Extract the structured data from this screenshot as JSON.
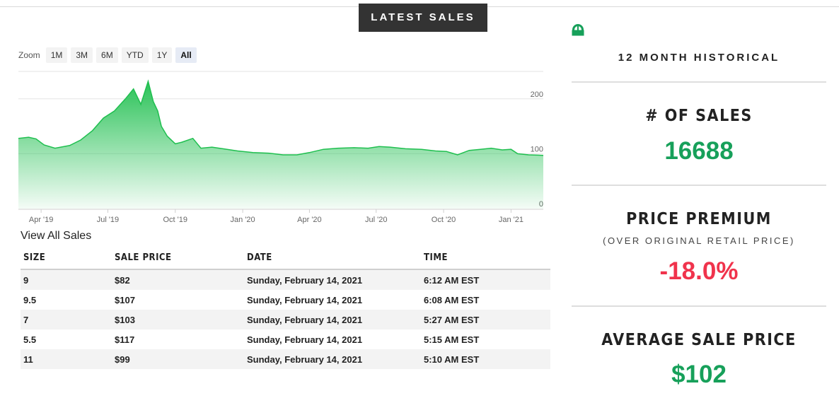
{
  "header": {
    "latest_sales_label": "LATEST SALES"
  },
  "zoom": {
    "label": "Zoom",
    "options": [
      "1M",
      "3M",
      "6M",
      "YTD",
      "1Y",
      "All"
    ],
    "selected": "All"
  },
  "chart_data": {
    "type": "area",
    "title": "",
    "xlabel": "",
    "ylabel": "",
    "ylim": [
      0,
      250
    ],
    "xlim": [
      "2019-03-01",
      "2021-02-14"
    ],
    "grid": true,
    "x_ticks": [
      {
        "label": "Apr '19",
        "date": "2019-04-01"
      },
      {
        "label": "Jul '19",
        "date": "2019-07-01"
      },
      {
        "label": "Oct '19",
        "date": "2019-10-01"
      },
      {
        "label": "Jan '20",
        "date": "2020-01-01"
      },
      {
        "label": "Apr '20",
        "date": "2020-04-01"
      },
      {
        "label": "Jul '20",
        "date": "2020-07-01"
      },
      {
        "label": "Oct '20",
        "date": "2020-10-01"
      },
      {
        "label": "Jan '21",
        "date": "2021-01-01"
      }
    ],
    "y_ticks": [
      0,
      100,
      200
    ],
    "color": "#1fbf4f",
    "series": [
      {
        "x": [
          "2019-03-01",
          "2019-03-15",
          "2019-03-25",
          "2019-04-05",
          "2019-04-20",
          "2019-05-10",
          "2019-05-25",
          "2019-06-10",
          "2019-06-25",
          "2019-07-10",
          "2019-07-25",
          "2019-08-05",
          "2019-08-15",
          "2019-08-25",
          "2019-09-01",
          "2019-09-07",
          "2019-09-12",
          "2019-09-20",
          "2019-10-01",
          "2019-10-10",
          "2019-10-25",
          "2019-11-05",
          "2019-11-20",
          "2019-12-05",
          "2019-12-25",
          "2020-01-15",
          "2020-02-05",
          "2020-02-25",
          "2020-03-15",
          "2020-04-01",
          "2020-04-20",
          "2020-05-10",
          "2020-06-01",
          "2020-06-20",
          "2020-07-05",
          "2020-07-20",
          "2020-08-10",
          "2020-09-01",
          "2020-09-20",
          "2020-10-05",
          "2020-10-20",
          "2020-11-05",
          "2020-11-20",
          "2020-12-05",
          "2020-12-20",
          "2021-01-01",
          "2021-01-10",
          "2021-01-25",
          "2021-02-14"
        ],
        "values": [
          128,
          130,
          127,
          116,
          110,
          115,
          125,
          142,
          165,
          178,
          200,
          218,
          190,
          232,
          195,
          178,
          150,
          132,
          118,
          121,
          128,
          110,
          112,
          109,
          105,
          102,
          101,
          98,
          98,
          102,
          108,
          110,
          111,
          110,
          113,
          112,
          109,
          108,
          105,
          104,
          98,
          106,
          108,
          110,
          107,
          108,
          100,
          98,
          97
        ]
      }
    ]
  },
  "view_all_label": "View All Sales",
  "sales_table": {
    "headers": [
      "SIZE",
      "SALE PRICE",
      "DATE",
      "TIME"
    ],
    "rows": [
      [
        "9",
        "$82",
        "Sunday, February 14, 2021",
        "6:12 AM EST"
      ],
      [
        "9.5",
        "$107",
        "Sunday, February 14, 2021",
        "6:08 AM EST"
      ],
      [
        "7",
        "$103",
        "Sunday, February 14, 2021",
        "5:27 AM EST"
      ],
      [
        "5.5",
        "$117",
        "Sunday, February 14, 2021",
        "5:15 AM EST"
      ],
      [
        "11",
        "$99",
        "Sunday, February 14, 2021",
        "5:10 AM EST"
      ]
    ]
  },
  "stats": {
    "historical_label": "12 MONTH HISTORICAL",
    "num_sales_label": "# OF SALES",
    "num_sales_value": "16688",
    "price_premium_label": "PRICE PREMIUM",
    "price_premium_sub": "(OVER ORIGINAL RETAIL PRICE)",
    "price_premium_value": "-18.0%",
    "avg_price_label": "AVERAGE SALE PRICE",
    "avg_price_value": "$102"
  },
  "colors": {
    "positive": "#17a05a",
    "negative": "#f0334c",
    "badge": "#333333"
  },
  "icons": {
    "top_right_icon": "green-meter-icon"
  }
}
